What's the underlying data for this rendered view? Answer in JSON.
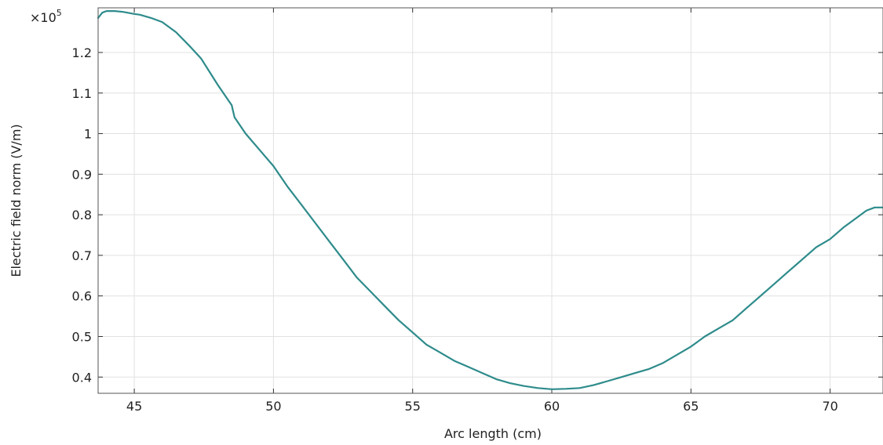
{
  "chart_data": {
    "type": "line",
    "title": "",
    "xlabel": "Arc length (cm)",
    "ylabel": "Electric field norm (V/m)",
    "y_multiplier": "×10",
    "y_multiplier_exponent": "5",
    "xlim": [
      43.7,
      71.9
    ],
    "ylim": [
      0.36,
      1.31
    ],
    "grid": true,
    "x_ticks": [
      45,
      50,
      55,
      60,
      65,
      70
    ],
    "x_tick_labels": [
      "45",
      "50",
      "55",
      "60",
      "65",
      "70"
    ],
    "y_ticks": [
      0.4,
      0.5,
      0.6,
      0.7,
      0.8,
      0.9,
      1.0,
      1.1,
      1.2
    ],
    "y_tick_labels": [
      "0.4",
      "0.5",
      "0.6",
      "0.7",
      "0.8",
      "0.9",
      "1",
      "1.1",
      "1.2"
    ],
    "line_color": "#2e8b8b",
    "series": [
      {
        "x": [
          43.7,
          43.85,
          44.0,
          44.3,
          44.6,
          45.0,
          45.2,
          45.6,
          46.0,
          46.5,
          47.0,
          47.4,
          48.0,
          48.5,
          48.6,
          49.0,
          49.5,
          50.0,
          50.5,
          51.0,
          51.5,
          52.0,
          52.5,
          53.0,
          53.5,
          54.0,
          54.5,
          55.0,
          55.5,
          56.0,
          56.5,
          57.0,
          57.5,
          58.0,
          58.5,
          59.0,
          59.5,
          60.0,
          60.5,
          61.0,
          61.5,
          62.0,
          62.5,
          63.0,
          63.5,
          64.0,
          64.5,
          65.0,
          65.5,
          66.0,
          66.5,
          67.0,
          67.5,
          68.0,
          68.5,
          69.0,
          69.5,
          70.0,
          70.5,
          71.0,
          71.3,
          71.6,
          71.9
        ],
        "y": [
          1.285,
          1.298,
          1.302,
          1.302,
          1.3,
          1.295,
          1.293,
          1.285,
          1.275,
          1.25,
          1.215,
          1.185,
          1.12,
          1.07,
          1.04,
          1.0,
          0.96,
          0.92,
          0.87,
          0.825,
          0.78,
          0.735,
          0.69,
          0.645,
          0.61,
          0.575,
          0.54,
          0.51,
          0.48,
          0.46,
          0.44,
          0.425,
          0.41,
          0.395,
          0.385,
          0.378,
          0.373,
          0.37,
          0.371,
          0.373,
          0.38,
          0.39,
          0.4,
          0.41,
          0.42,
          0.435,
          0.455,
          0.475,
          0.5,
          0.52,
          0.54,
          0.57,
          0.6,
          0.63,
          0.66,
          0.69,
          0.72,
          0.74,
          0.77,
          0.795,
          0.81,
          0.818,
          0.818
        ]
      }
    ]
  }
}
